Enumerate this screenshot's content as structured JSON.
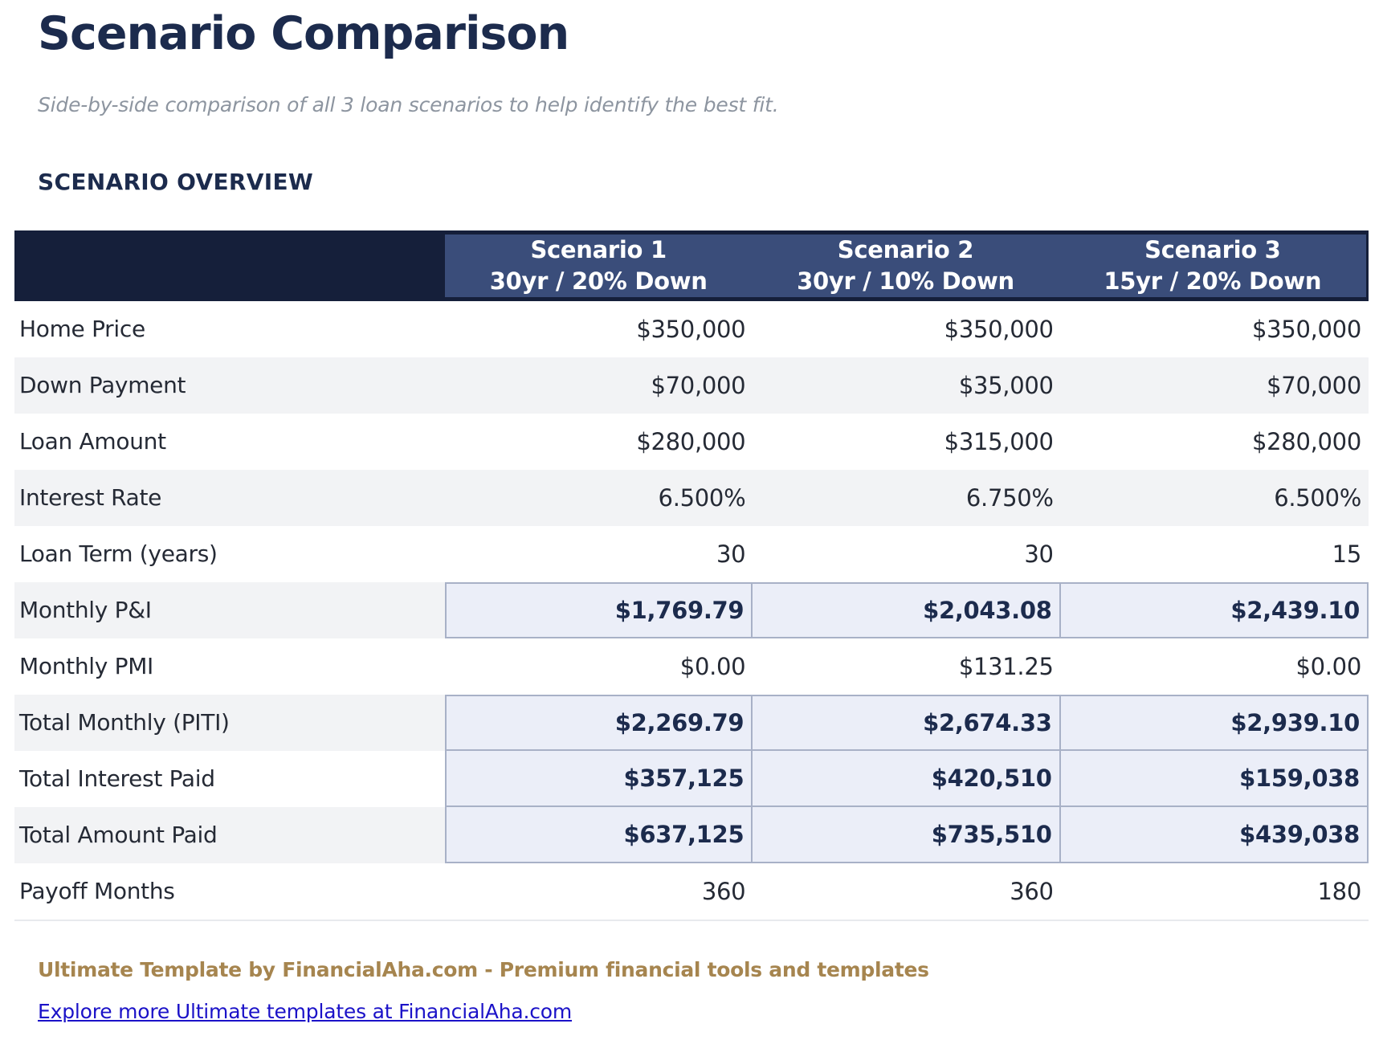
{
  "page": {
    "title": "Scenario Comparison",
    "subtitle": "Side-by-side comparison of all 3 loan scenarios to help identify the best fit.",
    "section_title": "SCENARIO OVERVIEW"
  },
  "table": {
    "columns": [
      {
        "line1": "Scenario 1",
        "line2": "30yr / 20% Down"
      },
      {
        "line1": "Scenario 2",
        "line2": "30yr / 10% Down"
      },
      {
        "line1": "Scenario 3",
        "line2": "15yr / 20% Down"
      }
    ],
    "rows": [
      {
        "label": "Home Price",
        "values": [
          "$350,000",
          "$350,000",
          "$350,000"
        ],
        "highlight": false
      },
      {
        "label": "Down Payment",
        "values": [
          "$70,000",
          "$35,000",
          "$70,000"
        ],
        "highlight": false
      },
      {
        "label": "Loan Amount",
        "values": [
          "$280,000",
          "$315,000",
          "$280,000"
        ],
        "highlight": false
      },
      {
        "label": "Interest Rate",
        "values": [
          "6.500%",
          "6.750%",
          "6.500%"
        ],
        "highlight": false
      },
      {
        "label": "Loan Term (years)",
        "values": [
          "30",
          "30",
          "15"
        ],
        "highlight": false
      },
      {
        "label": "Monthly P&I",
        "values": [
          "$1,769.79",
          "$2,043.08",
          "$2,439.10"
        ],
        "highlight": true
      },
      {
        "label": "Monthly PMI",
        "values": [
          "$0.00",
          "$131.25",
          "$0.00"
        ],
        "highlight": false
      },
      {
        "label": "Total Monthly (PITI)",
        "values": [
          "$2,269.79",
          "$2,674.33",
          "$2,939.10"
        ],
        "highlight": true
      },
      {
        "label": "Total Interest Paid",
        "values": [
          "$357,125",
          "$420,510",
          "$159,038"
        ],
        "highlight": true
      },
      {
        "label": "Total Amount Paid",
        "values": [
          "$637,125",
          "$735,510",
          "$439,038"
        ],
        "highlight": true
      },
      {
        "label": "Payoff Months",
        "values": [
          "360",
          "360",
          "180"
        ],
        "highlight": false
      }
    ]
  },
  "footer": {
    "branding": "Ultimate Template by FinancialAha.com - Premium financial tools and templates",
    "link": "Explore more Ultimate templates at FinancialAha.com"
  },
  "colors": {
    "header_dark_navy": "#151f3a",
    "header_blue": "#3a4d7a",
    "accent_navy": "#1c2b4d",
    "row_stripe": "#f2f3f5",
    "highlight_fill": "#ebeef8",
    "highlight_border": "#a8b1c7",
    "branding_gold": "#a6854f",
    "link_blue": "#1b12c8",
    "subtitle_gray": "#8d95a0"
  }
}
